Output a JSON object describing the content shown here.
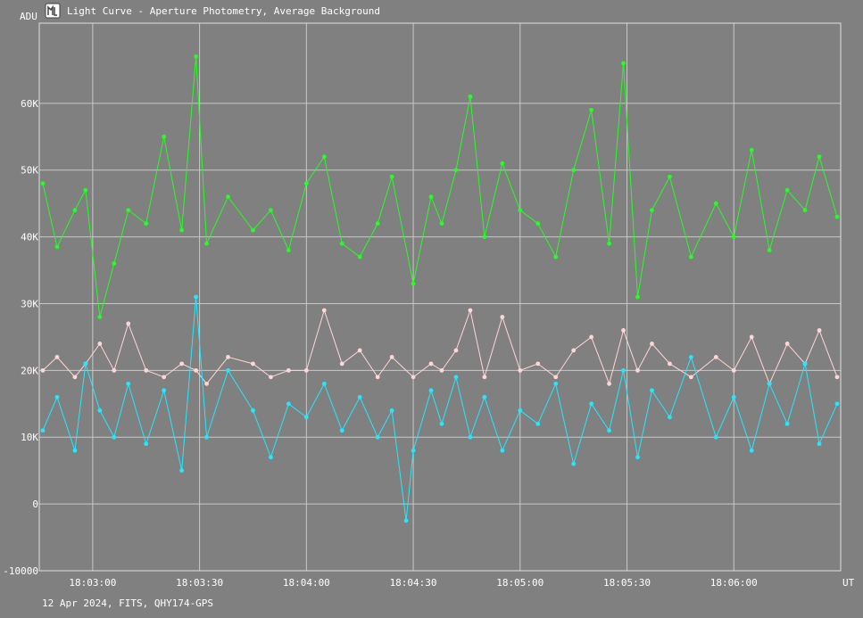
{
  "window": {
    "title": "Light Curve - Aperture Photometry, Average Background",
    "icon": "light-curve-app-icon"
  },
  "footer": {
    "caption": "12 Apr 2024, FITS, QHY174-GPS"
  },
  "chart_data": {
    "type": "line",
    "title": "Light Curve - Aperture Photometry, Average Background",
    "ylabel": "ADU",
    "xlabel": "UT",
    "ylim": [
      -10000,
      72000
    ],
    "xlim": [
      "18:02:45",
      "18:06:30"
    ],
    "grid": true,
    "legend": "none",
    "y_ticks": [
      {
        "value": 60000,
        "label": "60K"
      },
      {
        "value": 50000,
        "label": "50K"
      },
      {
        "value": 40000,
        "label": "40K"
      },
      {
        "value": 30000,
        "label": "30K"
      },
      {
        "value": 20000,
        "label": "20K"
      },
      {
        "value": 10000,
        "label": "10K"
      },
      {
        "value": 0,
        "label": "0"
      },
      {
        "value": -10000,
        "label": "-10000"
      }
    ],
    "x_ticks": [
      {
        "value": "18:03:00",
        "label": "18:03:00"
      },
      {
        "value": "18:03:30",
        "label": "18:03:30"
      },
      {
        "value": "18:04:00",
        "label": "18:04:00"
      },
      {
        "value": "18:04:30",
        "label": "18:04:30"
      },
      {
        "value": "18:05:00",
        "label": "18:05:00"
      },
      {
        "value": "18:05:30",
        "label": "18:05:30"
      },
      {
        "value": "18:06:00",
        "label": "18:06:00"
      }
    ],
    "series": [
      {
        "color": "#22ff22",
        "x": [
          "18:02:46",
          "18:02:50",
          "18:02:55",
          "18:02:58",
          "18:03:02",
          "18:03:06",
          "18:03:10",
          "18:03:15",
          "18:03:20",
          "18:03:25",
          "18:03:29",
          "18:03:32",
          "18:03:38",
          "18:03:45",
          "18:03:50",
          "18:03:55",
          "18:04:00",
          "18:04:05",
          "18:04:10",
          "18:04:15",
          "18:04:20",
          "18:04:24",
          "18:04:30",
          "18:04:35",
          "18:04:38",
          "18:04:42",
          "18:04:46",
          "18:04:50",
          "18:04:55",
          "18:05:00",
          "18:05:05",
          "18:05:10",
          "18:05:15",
          "18:05:20",
          "18:05:25",
          "18:05:29",
          "18:05:33",
          "18:05:37",
          "18:05:42",
          "18:05:48",
          "18:05:55",
          "18:06:00",
          "18:06:05",
          "18:06:10",
          "18:06:15",
          "18:06:20",
          "18:06:24",
          "18:06:29"
        ],
        "values": [
          48000,
          38500,
          44000,
          47000,
          28000,
          36000,
          44000,
          42000,
          55000,
          41000,
          67000,
          39000,
          46000,
          41000,
          44000,
          38000,
          48000,
          52000,
          39000,
          37000,
          42000,
          49000,
          33000,
          46000,
          42000,
          50000,
          61000,
          40000,
          51000,
          44000,
          42000,
          37000,
          50000,
          59000,
          39000,
          66000,
          31000,
          44000,
          49000,
          37000,
          45000,
          40000,
          53000,
          38000,
          47000,
          44000,
          52000,
          43000
        ]
      },
      {
        "color": "#ffd6d6",
        "x": [
          "18:02:46",
          "18:02:50",
          "18:02:55",
          "18:02:58",
          "18:03:02",
          "18:03:06",
          "18:03:10",
          "18:03:15",
          "18:03:20",
          "18:03:25",
          "18:03:29",
          "18:03:32",
          "18:03:38",
          "18:03:45",
          "18:03:50",
          "18:03:55",
          "18:04:00",
          "18:04:05",
          "18:04:10",
          "18:04:15",
          "18:04:20",
          "18:04:24",
          "18:04:30",
          "18:04:35",
          "18:04:38",
          "18:04:42",
          "18:04:46",
          "18:04:50",
          "18:04:55",
          "18:05:00",
          "18:05:05",
          "18:05:10",
          "18:05:15",
          "18:05:20",
          "18:05:25",
          "18:05:29",
          "18:05:33",
          "18:05:37",
          "18:05:42",
          "18:05:48",
          "18:05:55",
          "18:06:00",
          "18:06:05",
          "18:06:10",
          "18:06:15",
          "18:06:20",
          "18:06:24",
          "18:06:29"
        ],
        "values": [
          20000,
          22000,
          19000,
          21000,
          24000,
          20000,
          27000,
          20000,
          19000,
          21000,
          20000,
          18000,
          22000,
          21000,
          19000,
          20000,
          20000,
          29000,
          21000,
          23000,
          19000,
          22000,
          19000,
          21000,
          20000,
          23000,
          29000,
          19000,
          28000,
          20000,
          21000,
          19000,
          23000,
          25000,
          18000,
          26000,
          20000,
          24000,
          21000,
          19000,
          22000,
          20000,
          25000,
          18000,
          24000,
          21000,
          26000,
          19000
        ]
      },
      {
        "color": "#22e8ff",
        "x": [
          "18:02:46",
          "18:02:50",
          "18:02:55",
          "18:02:58",
          "18:03:02",
          "18:03:06",
          "18:03:10",
          "18:03:15",
          "18:03:20",
          "18:03:25",
          "18:03:29",
          "18:03:32",
          "18:03:38",
          "18:03:45",
          "18:03:50",
          "18:03:55",
          "18:04:00",
          "18:04:05",
          "18:04:10",
          "18:04:15",
          "18:04:20",
          "18:04:24",
          "18:04:28",
          "18:04:30",
          "18:04:35",
          "18:04:38",
          "18:04:42",
          "18:04:46",
          "18:04:50",
          "18:04:55",
          "18:05:00",
          "18:05:05",
          "18:05:10",
          "18:05:15",
          "18:05:20",
          "18:05:25",
          "18:05:29",
          "18:05:33",
          "18:05:37",
          "18:05:42",
          "18:05:48",
          "18:05:55",
          "18:06:00",
          "18:06:05",
          "18:06:10",
          "18:06:15",
          "18:06:20",
          "18:06:24",
          "18:06:29"
        ],
        "values": [
          11000,
          16000,
          8000,
          21000,
          14000,
          10000,
          18000,
          9000,
          17000,
          5000,
          31000,
          10000,
          20000,
          14000,
          7000,
          15000,
          13000,
          18000,
          11000,
          16000,
          10000,
          14000,
          -2500,
          8000,
          17000,
          12000,
          19000,
          10000,
          16000,
          8000,
          14000,
          12000,
          18000,
          6000,
          15000,
          11000,
          20000,
          7000,
          17000,
          13000,
          22000,
          10000,
          16000,
          8000,
          18000,
          12000,
          21000,
          9000,
          15000
        ]
      }
    ]
  }
}
